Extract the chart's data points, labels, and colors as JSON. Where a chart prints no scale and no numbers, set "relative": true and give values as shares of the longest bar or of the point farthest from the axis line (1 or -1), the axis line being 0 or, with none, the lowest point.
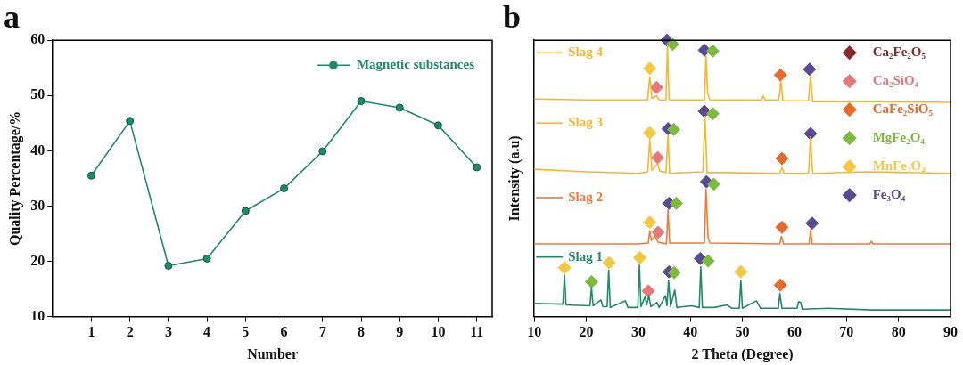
{
  "chart_data": [
    {
      "type": "line",
      "title": "a",
      "xlabel": "Number",
      "ylabel": "Quality Percentage/%",
      "x": [
        1,
        2,
        3,
        4,
        5,
        6,
        7,
        8,
        9,
        10,
        11
      ],
      "series": [
        {
          "name": "Magnetic substances",
          "color": "#1e8a68",
          "values": [
            35.5,
            45.4,
            19.2,
            20.5,
            29.1,
            33.2,
            39.9,
            49.0,
            47.8,
            44.6,
            37.0
          ]
        }
      ],
      "xlim": [
        0,
        11.4
      ],
      "xticks": [
        1,
        2,
        3,
        4,
        5,
        6,
        7,
        8,
        9,
        10,
        11
      ],
      "ylim": [
        10,
        60
      ],
      "yticks": [
        10,
        20,
        30,
        40,
        50,
        60
      ],
      "grid": false,
      "legend": "top right",
      "marker": "circle"
    },
    {
      "type": "line",
      "title": "b",
      "xlabel": "2 Theta (Degree)",
      "ylabel": "Intensity (a.u)",
      "relative": true,
      "xlim": [
        10,
        90
      ],
      "xticks": [
        10,
        20,
        30,
        40,
        50,
        60,
        70,
        80,
        90
      ],
      "grid": false,
      "legend": "top right",
      "series": [
        {
          "name": "Slag 4",
          "color": "#f5b731",
          "x": [
            10,
            20,
            30,
            31.8,
            32.2,
            32.6,
            33.5,
            34.0,
            35.3,
            35.6,
            35.9,
            40,
            42.7,
            43.0,
            43.3,
            43.7,
            53.7,
            54.0,
            54.3,
            57.0,
            57.4,
            57.8,
            62.7,
            63.1,
            63.5,
            75,
            90
          ],
          "values": [
            0.787,
            0.784,
            0.784,
            0.784,
            0.868,
            0.79,
            0.799,
            0.784,
            0.784,
            0.979,
            0.784,
            0.784,
            0.784,
            0.943,
            0.811,
            0.784,
            0.784,
            0.799,
            0.784,
            0.784,
            0.85,
            0.781,
            0.781,
            0.871,
            0.778,
            0.778,
            0.775
          ]
        },
        {
          "name": "Slag 3",
          "color": "#f5b731",
          "x": [
            10,
            20,
            30,
            31.8,
            32.2,
            32.6,
            33.3,
            33.7,
            34.1,
            35.3,
            35.7,
            36.0,
            42.4,
            42.8,
            43.2,
            47,
            57.2,
            57.6,
            58,
            62.7,
            63.1,
            63.5,
            74,
            90
          ],
          "values": [
            0.533,
            0.524,
            0.518,
            0.524,
            0.641,
            0.53,
            0.545,
            0.554,
            0.527,
            0.521,
            0.655,
            0.518,
            0.524,
            0.725,
            0.521,
            0.521,
            0.518,
            0.539,
            0.518,
            0.518,
            0.65,
            0.518,
            0.524,
            0.518
          ]
        },
        {
          "name": "Slag 2",
          "color": "#f07a3a",
          "x": [
            10,
            30,
            31.9,
            32.2,
            32.5,
            33.2,
            33.8,
            35.4,
            35.7,
            36.0,
            42.7,
            43.0,
            43.4,
            43.8,
            57.2,
            57.5,
            57.9,
            62.8,
            63.1,
            63.4,
            74.5,
            74.8,
            75.1,
            90
          ],
          "values": [
            0.263,
            0.263,
            0.266,
            0.311,
            0.275,
            0.29,
            0.269,
            0.263,
            0.386,
            0.266,
            0.266,
            0.461,
            0.284,
            0.266,
            0.263,
            0.29,
            0.263,
            0.263,
            0.314,
            0.263,
            0.263,
            0.272,
            0.263,
            0.263
          ]
        },
        {
          "name": "Slag 1",
          "color": "#1e8a68",
          "x": [
            10,
            15.5,
            15.8,
            16.1,
            20.7,
            21.0,
            21.3,
            22.8,
            23.2,
            24.0,
            24.3,
            24.6,
            27.5,
            28,
            29.9,
            30.2,
            30.5,
            31.3,
            31.6,
            32.0,
            32.4,
            33.6,
            34,
            35.2,
            35.5,
            35.8,
            36.2,
            37.0,
            37.4,
            40.2,
            41.7,
            42.0,
            42.3,
            44.6,
            47.0,
            48,
            49.4,
            49.7,
            50.0,
            52.7,
            53.5,
            56.9,
            57.2,
            57.6,
            60.5,
            60.8,
            61.2,
            61.5,
            66.5,
            75,
            90
          ],
          "values": [
            0.048,
            0.045,
            0.15,
            0.042,
            0.039,
            0.105,
            0.039,
            0.06,
            0.036,
            0.036,
            0.168,
            0.033,
            0.057,
            0.033,
            0.033,
            0.186,
            0.036,
            0.072,
            0.042,
            0.075,
            0.036,
            0.051,
            0.033,
            0.075,
            0.039,
            0.132,
            0.036,
            0.096,
            0.033,
            0.039,
            0.033,
            0.18,
            0.033,
            0.033,
            0.042,
            0.03,
            0.03,
            0.132,
            0.03,
            0.057,
            0.03,
            0.03,
            0.084,
            0.03,
            0.03,
            0.054,
            0.051,
            0.027,
            0.03,
            0.024,
            0.024
          ]
        },
        {
          "name": "Ca₂Fe₂O₅",
          "type": "scatter",
          "marker": "diamond",
          "color": "#8b2a2a"
        },
        {
          "name": "Ca₂SiO₄",
          "type": "scatter",
          "marker": "diamond",
          "color": "#e87878",
          "x": [
            33.5,
            33.7,
            33.8,
            31.9
          ],
          "values": [
            0.829,
            0.575,
            0.305,
            0.093
          ]
        },
        {
          "name": "CaFe₂SiO₅",
          "type": "scatter",
          "marker": "diamond",
          "color": "#e8692a",
          "x": [
            57.3,
            57.6,
            57.6,
            57.3
          ],
          "values": [
            0.874,
            0.572,
            0.323,
            0.114
          ]
        },
        {
          "name": "MgFe₂O₄",
          "type": "scatter",
          "marker": "diamond",
          "color": "#7dbb3c",
          "x": [
            36.6,
            44.3,
            44.3,
            36.8,
            44.5,
            37.3,
            21.0,
            36.9,
            43.4
          ],
          "values": [
            0.985,
            0.961,
            0.734,
            0.677,
            0.479,
            0.41,
            0.126,
            0.159,
            0.201
          ]
        },
        {
          "name": "MnFe₂O₄",
          "type": "scatter",
          "marker": "diamond",
          "color": "#f5c842",
          "x": [
            32.2,
            32.2,
            32.2,
            15.8,
            24.4,
            30.3,
            49.7
          ],
          "values": [
            0.898,
            0.665,
            0.341,
            0.177,
            0.195,
            0.213,
            0.162
          ]
        },
        {
          "name": "Fe₃O₄",
          "type": "scatter",
          "marker": "diamond",
          "color": "#5a4a94",
          "x": [
            35.5,
            42.7,
            62.9,
            42.7,
            35.7,
            63.1,
            43.1,
            35.9,
            63.4,
            35.9,
            41.9
          ],
          "values": [
            1.0,
            0.964,
            0.895,
            0.743,
            0.68,
            0.662,
            0.488,
            0.41,
            0.338,
            0.162,
            0.21
          ]
        }
      ]
    }
  ]
}
